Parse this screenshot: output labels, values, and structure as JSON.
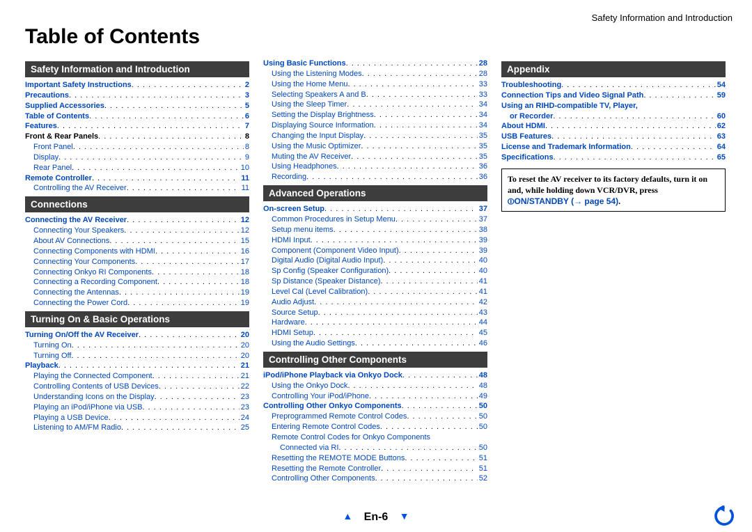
{
  "running_head": "Safety Information and Introduction",
  "title": "Table of Contents",
  "page_label": "En-6",
  "colors": {
    "section_bar_bg": "#3d3d3d",
    "link_blue": "#0047ba",
    "nav_blue": "#0453d8"
  },
  "callout": {
    "line1": "To reset the AV receiver to its factory defaults, turn it on and, while holding down ",
    "vcrdvr": "VCR/DVR",
    "line2": ", press ",
    "standby": "⏼ON/STANDBY",
    "arrow_page": " (→ page 54)",
    "period": "."
  },
  "sections": [
    {
      "col": 0,
      "header": "Safety Information and Introduction",
      "items": [
        {
          "l": "Important Safety Instructions",
          "p": "2",
          "style": "bold-link"
        },
        {
          "l": "Precautions",
          "p": "3",
          "style": "bold-link"
        },
        {
          "l": "Supplied Accessories",
          "p": "5",
          "style": "bold-link"
        },
        {
          "l": "Table of Contents",
          "p": "6",
          "style": "bold-link"
        },
        {
          "l": "Features",
          "p": "7",
          "style": "bold-link"
        },
        {
          "l": "Front & Rear Panels",
          "p": "8",
          "style": "bold-black"
        },
        {
          "l": "Front Panel",
          "p": "8",
          "style": "plain-link",
          "indent": 1
        },
        {
          "l": "Display",
          "p": "9",
          "style": "plain-link",
          "indent": 1
        },
        {
          "l": "Rear Panel",
          "p": "10",
          "style": "plain-link",
          "indent": 1
        },
        {
          "l": "Remote Controller",
          "p": "11",
          "style": "bold-link"
        },
        {
          "l": "Controlling the AV Receiver",
          "p": "11",
          "style": "plain-link",
          "indent": 1
        }
      ]
    },
    {
      "col": 0,
      "header": "Connections",
      "items": [
        {
          "l": "Connecting the AV Receiver",
          "p": "12",
          "style": "bold-link"
        },
        {
          "l": "Connecting Your Speakers",
          "p": "12",
          "style": "plain-link",
          "indent": 1
        },
        {
          "l": "About AV Connections",
          "p": "15",
          "style": "plain-link",
          "indent": 1
        },
        {
          "l": "Connecting Components with HDMI",
          "p": "16",
          "style": "plain-link",
          "indent": 1
        },
        {
          "l": "Connecting Your Components",
          "p": "17",
          "style": "plain-link",
          "indent": 1
        },
        {
          "l": "Connecting Onkyo RI Components",
          "p": "18",
          "style": "plain-link",
          "indent": 1
        },
        {
          "l": "Connecting a Recording Component",
          "p": "18",
          "style": "plain-link",
          "indent": 1
        },
        {
          "l": "Connecting the Antennas",
          "p": "19",
          "style": "plain-link",
          "indent": 1
        },
        {
          "l": "Connecting the Power Cord",
          "p": "19",
          "style": "plain-link",
          "indent": 1
        }
      ]
    },
    {
      "col": 0,
      "header": "Turning On & Basic Operations",
      "items": [
        {
          "l": "Turning On/Off the AV Receiver",
          "p": "20",
          "style": "bold-link"
        },
        {
          "l": "Turning On",
          "p": "20",
          "style": "plain-link",
          "indent": 1
        },
        {
          "l": "Turning Off",
          "p": "20",
          "style": "plain-link",
          "indent": 1
        },
        {
          "l": "Playback",
          "p": "21",
          "style": "bold-link"
        },
        {
          "l": "Playing the Connected Component",
          "p": "21",
          "style": "plain-link",
          "indent": 1
        },
        {
          "l": "Controlling Contents of USB Devices",
          "p": "22",
          "style": "plain-link",
          "indent": 1
        },
        {
          "l": "Understanding Icons on the Display",
          "p": "23",
          "style": "plain-link",
          "indent": 1
        },
        {
          "l": "Playing an iPod/iPhone via USB",
          "p": "23",
          "style": "plain-link",
          "indent": 1
        },
        {
          "l": "Playing a USB Device",
          "p": "24",
          "style": "plain-link",
          "indent": 1
        },
        {
          "l": "Listening to AM/FM Radio",
          "p": "25",
          "style": "plain-link",
          "indent": 1
        }
      ]
    },
    {
      "col": 1,
      "header": null,
      "items": [
        {
          "l": "Using Basic Functions",
          "p": "28",
          "style": "bold-link"
        },
        {
          "l": "Using the Listening Modes",
          "p": "28",
          "style": "plain-link",
          "indent": 1
        },
        {
          "l": "Using the Home Menu",
          "p": "33",
          "style": "plain-link",
          "indent": 1
        },
        {
          "l": "Selecting Speakers A and B",
          "p": "33",
          "style": "plain-link",
          "indent": 1
        },
        {
          "l": "Using the Sleep Timer",
          "p": "34",
          "style": "plain-link",
          "indent": 1
        },
        {
          "l": "Setting the Display Brightness",
          "p": "34",
          "style": "plain-link",
          "indent": 1
        },
        {
          "l": "Displaying Source Information",
          "p": "34",
          "style": "plain-link",
          "indent": 1
        },
        {
          "l": "Changing the Input Display",
          "p": "35",
          "style": "plain-link",
          "indent": 1
        },
        {
          "l": "Using the Music Optimizer",
          "p": "35",
          "style": "plain-link",
          "indent": 1
        },
        {
          "l": "Muting the AV Receiver",
          "p": "35",
          "style": "plain-link",
          "indent": 1
        },
        {
          "l": "Using Headphones",
          "p": "36",
          "style": "plain-link",
          "indent": 1
        },
        {
          "l": "Recording",
          "p": "36",
          "style": "plain-link",
          "indent": 1
        }
      ]
    },
    {
      "col": 1,
      "header": "Advanced Operations",
      "items": [
        {
          "l": "On-screen Setup",
          "p": "37",
          "style": "bold-link"
        },
        {
          "l": "Common Procedures in Setup Menu",
          "p": "37",
          "style": "plain-link",
          "indent": 1
        },
        {
          "l": "Setup menu items",
          "p": "38",
          "style": "plain-link",
          "indent": 1
        },
        {
          "l": "HDMI Input",
          "p": "39",
          "style": "plain-link",
          "indent": 1
        },
        {
          "l": "Component (Component Video Input)",
          "p": "39",
          "style": "plain-link",
          "indent": 1
        },
        {
          "l": "Digital Audio (Digital Audio Input)",
          "p": "40",
          "style": "plain-link",
          "indent": 1
        },
        {
          "l": "Sp Config (Speaker Configuration)",
          "p": "40",
          "style": "plain-link",
          "indent": 1
        },
        {
          "l": "Sp Distance (Speaker Distance)",
          "p": "41",
          "style": "plain-link",
          "indent": 1
        },
        {
          "l": "Level Cal (Level Calibration)",
          "p": "41",
          "style": "plain-link",
          "indent": 1
        },
        {
          "l": "Audio Adjust",
          "p": "42",
          "style": "plain-link",
          "indent": 1
        },
        {
          "l": "Source Setup",
          "p": "43",
          "style": "plain-link",
          "indent": 1
        },
        {
          "l": "Hardware",
          "p": "44",
          "style": "plain-link",
          "indent": 1
        },
        {
          "l": "HDMI Setup",
          "p": "45",
          "style": "plain-link",
          "indent": 1
        },
        {
          "l": "Using the Audio Settings",
          "p": "46",
          "style": "plain-link",
          "indent": 1
        }
      ]
    },
    {
      "col": 1,
      "header": "Controlling Other Components",
      "items": [
        {
          "l": "iPod/iPhone Playback via Onkyo Dock",
          "p": "48",
          "style": "bold-link"
        },
        {
          "l": "Using the Onkyo Dock",
          "p": "48",
          "style": "plain-link",
          "indent": 1
        },
        {
          "l": "Controlling Your iPod/iPhone",
          "p": "49",
          "style": "plain-link",
          "indent": 1
        },
        {
          "l": "Controlling Other Onkyo Components",
          "p": "50",
          "style": "bold-link"
        },
        {
          "l": "Preprogrammed Remote Control Codes",
          "p": "50",
          "style": "plain-link",
          "indent": 1
        },
        {
          "l": "Entering Remote Control Codes",
          "p": "50",
          "style": "plain-link",
          "indent": 1
        },
        {
          "l": "Remote Control Codes for Onkyo Components",
          "p": "",
          "style": "plain-link",
          "indent": 1,
          "nodots": true
        },
        {
          "l": "Connected via RI",
          "p": "50",
          "style": "plain-link",
          "indent": 2
        },
        {
          "l": "Resetting the REMOTE MODE Buttons",
          "p": "51",
          "style": "plain-link",
          "indent": 1
        },
        {
          "l": "Resetting the Remote Controller",
          "p": "51",
          "style": "plain-link",
          "indent": 1
        },
        {
          "l": "Controlling Other Components",
          "p": "52",
          "style": "plain-link",
          "indent": 1
        }
      ]
    },
    {
      "col": 2,
      "header": "Appendix",
      "items": [
        {
          "l": "Troubleshooting",
          "p": "54",
          "style": "bold-link"
        },
        {
          "l": "Connection Tips and Video Signal Path",
          "p": "59",
          "style": "bold-link"
        },
        {
          "l": "Using an RIHD-compatible TV, Player,",
          "p": "",
          "style": "bold-link",
          "nodots": true
        },
        {
          "l": "or Recorder",
          "p": "60",
          "style": "bold-link",
          "indent": 1
        },
        {
          "l": "About HDMI",
          "p": "62",
          "style": "bold-link"
        },
        {
          "l": "USB Features",
          "p": "63",
          "style": "bold-link"
        },
        {
          "l": "License and Trademark Information",
          "p": "64",
          "style": "bold-link"
        },
        {
          "l": "Specifications",
          "p": "65",
          "style": "bold-link"
        }
      ]
    }
  ]
}
